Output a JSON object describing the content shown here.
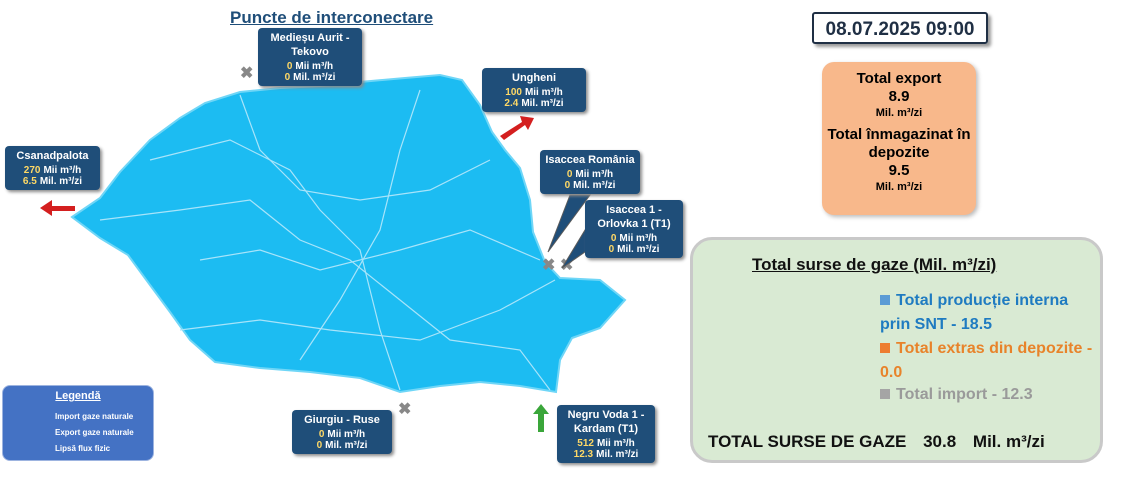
{
  "title": "Puncte de interconectare",
  "date": "08.07.2025 09:00",
  "points": [
    {
      "name": "Medieșu Aurit - Tekovo",
      "flow": 0,
      "flow_unit": "Mii  m³/h",
      "volume": 0,
      "volume_unit": "Mil. m³/zi"
    },
    {
      "name": "Ungheni",
      "flow": 100,
      "flow_unit": "Mii  m³/h",
      "volume": 2.4,
      "volume_unit": "Mil. m³/zi"
    },
    {
      "name": "Csanadpalota",
      "flow": 270,
      "flow_unit": "Mii  m³/h",
      "volume": 6.5,
      "volume_unit": "Mil. m³/zi"
    },
    {
      "name": "Isaccea România",
      "flow": 0,
      "flow_unit": "Mii  m³/h",
      "volume": 0,
      "volume_unit": "Mil. m³/zi"
    },
    {
      "name": "Isaccea 1 - Orlovka 1 (T1)",
      "flow": 0,
      "flow_unit": "Mii  m³/h",
      "volume": 0,
      "volume_unit": "Mil. m³/zi"
    },
    {
      "name": "Giurgiu - Ruse",
      "flow": 0,
      "flow_unit": "Mii  m³/h",
      "volume": 0,
      "volume_unit": "Mil. m³/zi"
    },
    {
      "name": "Negru Voda 1 - Kardam (T1)",
      "flow": 512,
      "flow_unit": "Mii  m³/h",
      "volume": 12.3,
      "volume_unit": "Mil. m³/zi"
    }
  ],
  "legend": {
    "title": "Legendă",
    "items": [
      "Import gaze naturale",
      "Export gaze naturale",
      "Lipsă flux fizic"
    ]
  },
  "totals": {
    "export_label": "Total export",
    "export_value": 8.9,
    "export_unit": "Mil. m³/zi",
    "storage_label": "Total înmagazinat în depozite",
    "storage_value": 9.5,
    "storage_unit": "Mil. m³/zi"
  },
  "chart_data": {
    "type": "pie",
    "title": "Total surse de gaze  (Mil. m³/zi)",
    "categories": [
      "Total producție interna prin SNT",
      "Total extras din depozite",
      "Total import"
    ],
    "values": [
      18.5,
      0.0,
      12.3
    ],
    "value_labels": [
      "18.5",
      "0.0",
      "12.3"
    ],
    "colors": [
      "#5b9bd5",
      "#ed7d31",
      "#a5a5a5"
    ],
    "legend_separator": "-",
    "total_label": "TOTAL SURSE DE GAZE",
    "total_value": 30.8,
    "total_unit": "Mil. m³/zi"
  }
}
